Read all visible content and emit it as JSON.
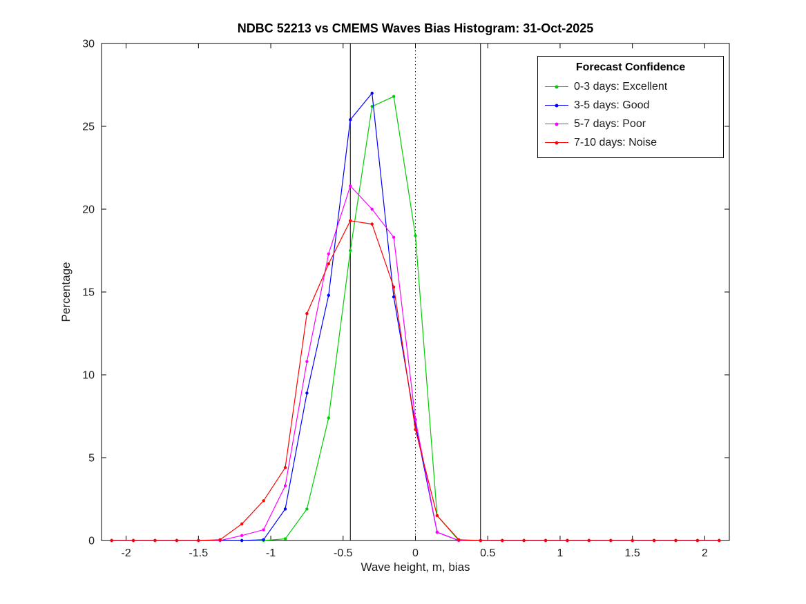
{
  "chart_data": {
    "type": "line",
    "title": "NDBC 52213 vs CMEMS Waves Bias Histogram: 31-Oct-2025",
    "xlabel": "Wave height, m, bias",
    "ylabel": "Percentage",
    "xlim": [
      -2.17,
      2.17
    ],
    "ylim": [
      0,
      30
    ],
    "grid": false,
    "marker": "dot",
    "x_ticks": [
      {
        "value": -2,
        "label": "-2"
      },
      {
        "value": -1.5,
        "label": "-1.5"
      },
      {
        "value": -1,
        "label": "-1"
      },
      {
        "value": -0.5,
        "label": "-0.5"
      },
      {
        "value": 0,
        "label": "0"
      },
      {
        "value": 0.5,
        "label": "0.5"
      },
      {
        "value": 1,
        "label": "1"
      },
      {
        "value": 1.5,
        "label": "1.5"
      },
      {
        "value": 2,
        "label": "2"
      }
    ],
    "y_ticks": [
      {
        "value": 0,
        "label": "0"
      },
      {
        "value": 5,
        "label": "5"
      },
      {
        "value": 10,
        "label": "10"
      },
      {
        "value": 15,
        "label": "15"
      },
      {
        "value": 20,
        "label": "20"
      },
      {
        "value": 25,
        "label": "25"
      },
      {
        "value": 30,
        "label": "30"
      }
    ],
    "reference_lines": [
      {
        "x": -0.45,
        "style": "solid",
        "color": "#000000"
      },
      {
        "x": 0,
        "style": "dotted",
        "color": "#000000"
      },
      {
        "x": 0.45,
        "style": "solid",
        "color": "#000000"
      }
    ],
    "x": [
      -2.1,
      -1.95,
      -1.8,
      -1.65,
      -1.5,
      -1.35,
      -1.2,
      -1.05,
      -0.9,
      -0.75,
      -0.6,
      -0.45,
      -0.3,
      -0.15,
      0,
      0.15,
      0.3,
      0.45,
      0.6,
      0.75,
      0.9,
      1.05,
      1.2,
      1.35,
      1.5,
      1.65,
      1.8,
      1.95,
      2.1
    ],
    "series": [
      {
        "name": "0-3 days: Excellent",
        "color": "#00cc00",
        "values": [
          0,
          0,
          0,
          0,
          0,
          0,
          0,
          0,
          0.1,
          1.9,
          7.4,
          17.5,
          26.2,
          26.8,
          18.4,
          1.5,
          0,
          0,
          0,
          0,
          0,
          0,
          0,
          0,
          0,
          0,
          0,
          0,
          0
        ]
      },
      {
        "name": "3-5 days: Good",
        "color": "#0000ff",
        "values": [
          0,
          0,
          0,
          0,
          0,
          0,
          0,
          0.05,
          1.9,
          8.9,
          14.8,
          25.4,
          27,
          14.7,
          7,
          0.5,
          0,
          0,
          0,
          0,
          0,
          0,
          0,
          0,
          0,
          0,
          0,
          0,
          0
        ]
      },
      {
        "name": "5-7 days: Poor",
        "color": "#ff00ff",
        "values": [
          0,
          0,
          0,
          0,
          0,
          0,
          0.3,
          0.65,
          3.3,
          10.8,
          17.3,
          21.4,
          20,
          18.3,
          7.3,
          0.5,
          0,
          0,
          0,
          0,
          0,
          0,
          0,
          0,
          0,
          0,
          0,
          0,
          0
        ]
      },
      {
        "name": "7-10 days: Noise",
        "color": "#ff0000",
        "values": [
          0,
          0,
          0,
          0,
          0,
          0.05,
          1,
          2.4,
          4.4,
          13.7,
          16.7,
          19.3,
          19.1,
          15.3,
          6.7,
          1.5,
          0.05,
          0,
          0,
          0,
          0,
          0,
          0,
          0,
          0,
          0,
          0,
          0,
          0
        ]
      }
    ],
    "legend": {
      "title": "Forecast Confidence",
      "position": "top-right"
    }
  }
}
